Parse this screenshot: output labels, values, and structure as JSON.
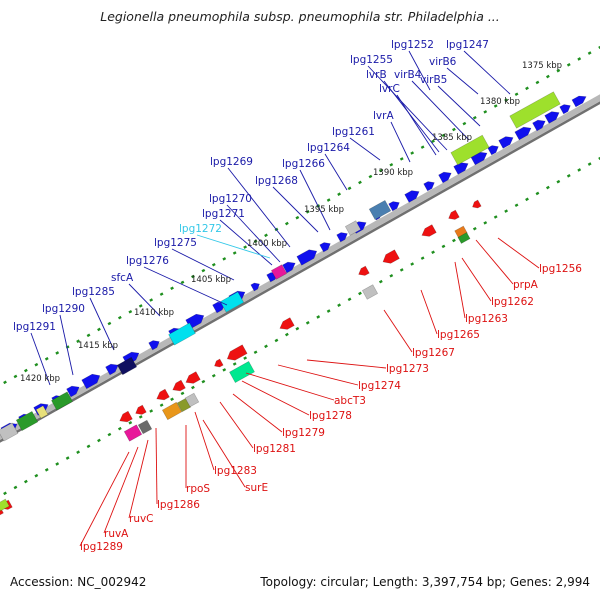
{
  "title": "Legionella pneumophila subsp. pneumophila str. Philadelphia ...",
  "footer": {
    "accession": "Accession: NC_002942",
    "summary": "Topology: circular; Length: 3,397,754 bp; Genes: 2,994"
  },
  "colors": {
    "forward_gene": "#1010ee",
    "reverse_gene": "#ee1111",
    "top_label": "#1a1aa8",
    "highlight_label": "#33c8e8",
    "bottom_label": "#dd1111",
    "tick": "#1f8f1f",
    "backbone": "#9a9a9a"
  },
  "kbp_ticks": [
    "1375 kbp",
    "1380 kbp",
    "1385 kbp",
    "1390 kbp",
    "1395 kbp",
    "1400 kbp",
    "1405 kbp",
    "1410 kbp",
    "1415 kbp",
    "1420 kbp"
  ],
  "top_labels": [
    {
      "text": "lpg1252"
    },
    {
      "text": "lpg1247"
    },
    {
      "text": "lpg1255"
    },
    {
      "text": "virB6"
    },
    {
      "text": "lvrB"
    },
    {
      "text": "virB4"
    },
    {
      "text": "lvrC"
    },
    {
      "text": "virB5"
    },
    {
      "text": "lvrA"
    },
    {
      "text": "lpg1261"
    },
    {
      "text": "lpg1264"
    },
    {
      "text": "lpg1269"
    },
    {
      "text": "lpg1266"
    },
    {
      "text": "lpg1268"
    },
    {
      "text": "lpg1270"
    },
    {
      "text": "lpg1271"
    },
    {
      "text": "lpg1272",
      "highlight": true
    },
    {
      "text": "lpg1275"
    },
    {
      "text": "lpg1276"
    },
    {
      "text": "sfcA"
    },
    {
      "text": "lpg1285"
    },
    {
      "text": "lpg1290"
    },
    {
      "text": "lpg1291"
    }
  ],
  "bottom_labels": [
    {
      "text": "lpg1256"
    },
    {
      "text": "prpA"
    },
    {
      "text": "lpg1262"
    },
    {
      "text": "lpg1263"
    },
    {
      "text": "lpg1265"
    },
    {
      "text": "lpg1267"
    },
    {
      "text": "lpg1273"
    },
    {
      "text": "lpg1274"
    },
    {
      "text": "abcT3"
    },
    {
      "text": "lpg1278"
    },
    {
      "text": "lpg1279"
    },
    {
      "text": "lpg1281"
    },
    {
      "text": "lpg1283"
    },
    {
      "text": "surE"
    },
    {
      "text": "rpoS"
    },
    {
      "text": "lpg1286"
    },
    {
      "text": "ruvC"
    },
    {
      "text": "ruvA"
    },
    {
      "text": "lpg1289"
    }
  ]
}
